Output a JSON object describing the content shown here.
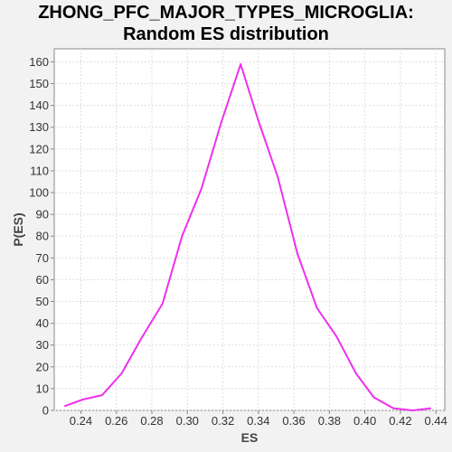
{
  "chart_data": {
    "type": "line",
    "title_lines": [
      "ZHONG_PFC_MAJOR_TYPES_MICROGLIA:",
      "Random ES distribution"
    ],
    "xlabel": "ES",
    "ylabel": "P(ES)",
    "xlim": [
      0.225,
      0.445
    ],
    "ylim": [
      0,
      166
    ],
    "xticks": [
      0.24,
      0.26,
      0.28,
      0.3,
      0.32,
      0.34,
      0.36,
      0.38,
      0.4,
      0.42,
      0.44
    ],
    "yticks": [
      0,
      10,
      20,
      30,
      40,
      50,
      60,
      70,
      80,
      90,
      100,
      110,
      120,
      130,
      140,
      150,
      160
    ],
    "grid": true,
    "series": [
      {
        "color": "#ee30ee",
        "x": [
          0.231,
          0.241,
          0.252,
          0.263,
          0.274,
          0.286,
          0.297,
          0.308,
          0.319,
          0.33,
          0.34,
          0.351,
          0.362,
          0.373,
          0.384,
          0.395,
          0.405,
          0.416,
          0.427,
          0.437
        ],
        "y": [
          2,
          5,
          7,
          17,
          33,
          49,
          80,
          102,
          132,
          159,
          133,
          107,
          72,
          47,
          34,
          17,
          6,
          1,
          0,
          1
        ]
      }
    ]
  }
}
